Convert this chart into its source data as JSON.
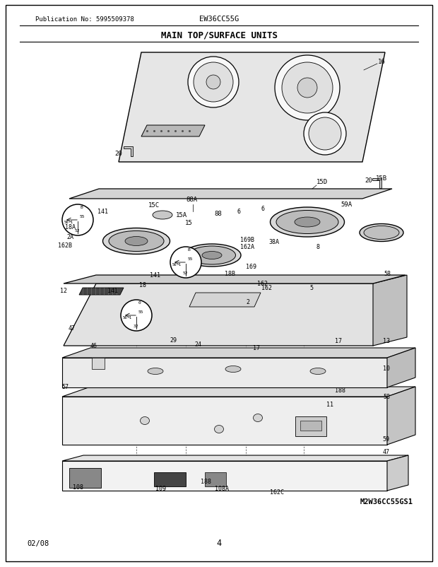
{
  "title": "MAIN TOP/SURFACE UNITS",
  "pub_no": "Publication No: 5995509378",
  "model": "EW36CC55G",
  "diagram_model": "M2W36CC55GS1",
  "date": "02/08",
  "page": "4",
  "bg_color": "#ffffff",
  "border_color": "#000000",
  "text_color": "#000000",
  "fig_width": 6.2,
  "fig_height": 8.03,
  "dpi": 100
}
